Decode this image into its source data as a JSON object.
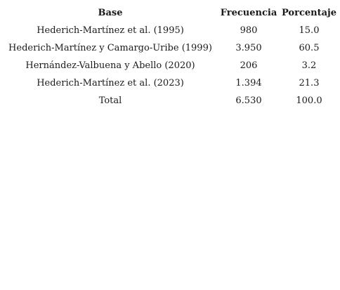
{
  "table": {
    "headers": [
      "Base",
      "Frecuencia",
      "Porcentaje"
    ],
    "rows": [
      [
        "Hederich-Martínez et al. (1995)",
        "980",
        "15.0"
      ],
      [
        "Hederich-Martínez y Camargo-Uribe (1999)",
        "3.950",
        "60.5"
      ],
      [
        "Hernández-Valbuena y Abello (2020)",
        "206",
        "3.2"
      ],
      [
        "Hederich-Martínez et al. (2023)",
        "1.394",
        "21.3"
      ],
      [
        "Total",
        "6.530",
        "100.0"
      ]
    ]
  }
}
